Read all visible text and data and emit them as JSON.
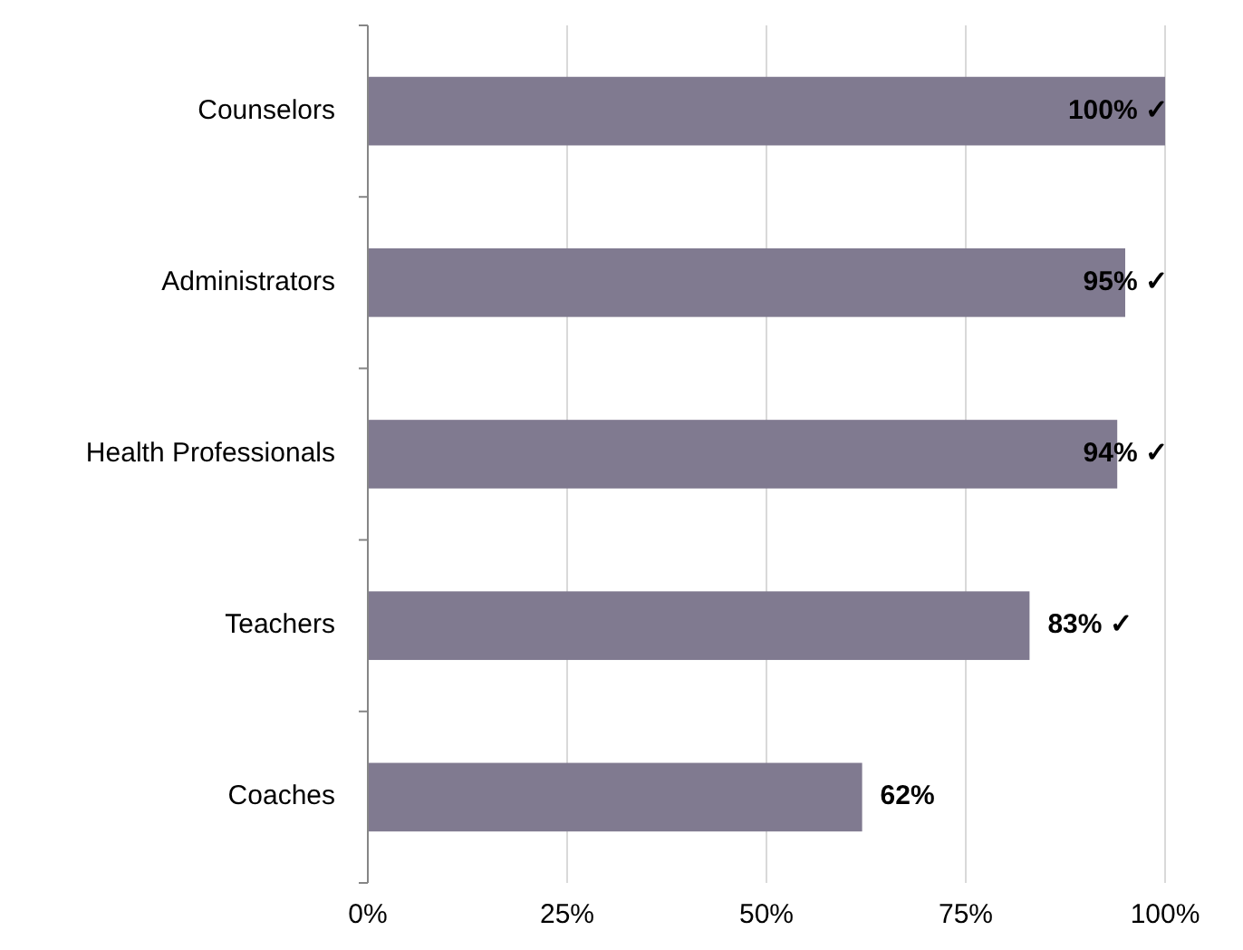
{
  "chart_data": {
    "type": "bar",
    "orientation": "horizontal",
    "categories": [
      "Counselors",
      "Administrators",
      "Health Professionals",
      "Teachers",
      "Coaches"
    ],
    "values": [
      100,
      95,
      94,
      83,
      62
    ],
    "value_labels": [
      "100% ✓",
      "95% ✓",
      "94% ✓",
      "83% ✓",
      "62%"
    ],
    "color": "#807a90",
    "xlim": [
      0,
      100
    ],
    "xticks": [
      {
        "value": 0,
        "label": "0%"
      },
      {
        "value": 25,
        "label": "25%"
      },
      {
        "value": 50,
        "label": "50%"
      },
      {
        "value": 75,
        "label": "75%"
      },
      {
        "value": 100,
        "label": "100%"
      }
    ],
    "grid": "x"
  }
}
